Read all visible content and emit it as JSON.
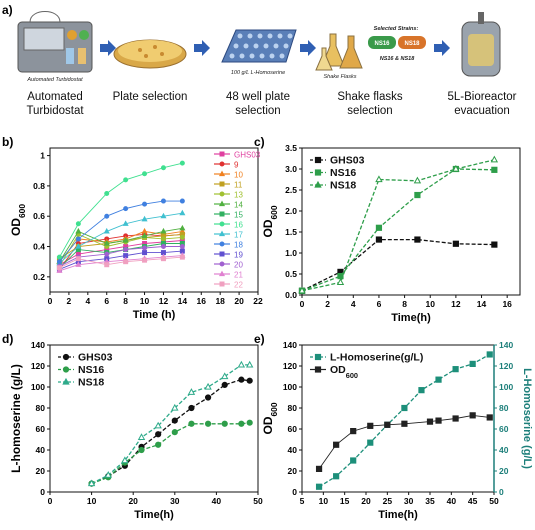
{
  "workflow": {
    "panel": "a)",
    "steps": [
      {
        "caption": [
          "Automated",
          "Turbidostat"
        ],
        "sublabel": "Automated Turbidostat"
      },
      {
        "caption": [
          "Plate selection"
        ]
      },
      {
        "caption": [
          "48 well plate",
          "selection"
        ],
        "sublabel": "100 g/L L-Homoserine"
      },
      {
        "caption": [
          "Shake flasks",
          "selection"
        ],
        "sublabel": "Shake Flasks",
        "selected": "Selected Strains:",
        "chips": [
          "NS16",
          "NS18"
        ],
        "chip_caption": "NS16 & NS18"
      },
      {
        "caption": [
          "5L-Bioreactor",
          "evacuation"
        ]
      }
    ]
  },
  "chart_data": [
    {
      "type": "line",
      "panel": "b)",
      "xlabel": "Time (h)",
      "ylabel": {
        "text": "OD",
        "sub": "600"
      },
      "x": [
        1,
        3,
        6,
        8,
        10,
        12,
        14
      ],
      "xlim": [
        0,
        22
      ],
      "xticks": [
        0,
        2,
        4,
        6,
        8,
        10,
        12,
        14,
        16,
        18,
        20,
        22
      ],
      "ylim": [
        0.1,
        1.05
      ],
      "yticks": [
        0.2,
        0.4,
        0.6,
        0.8,
        1.0
      ],
      "legend": "right",
      "line_style": "solid",
      "series": [
        {
          "name": "GHS03",
          "color": "#e040a0",
          "marker": "square",
          "values": [
            0.28,
            0.35,
            0.38,
            0.4,
            0.42,
            0.43,
            0.44
          ]
        },
        {
          "name": "9",
          "color": "#e03030",
          "marker": "circle",
          "values": [
            0.25,
            0.42,
            0.45,
            0.47,
            0.48,
            0.47,
            0.48
          ]
        },
        {
          "name": "10",
          "color": "#f08020",
          "marker": "triangle",
          "values": [
            0.3,
            0.45,
            0.43,
            0.45,
            0.5,
            0.48,
            0.5
          ]
        },
        {
          "name": "11",
          "color": "#c0a020",
          "marker": "square",
          "values": [
            0.32,
            0.4,
            0.42,
            0.44,
            0.46,
            0.47,
            0.48
          ]
        },
        {
          "name": "13",
          "color": "#a0c030",
          "marker": "circle",
          "values": [
            0.27,
            0.48,
            0.4,
            0.43,
            0.46,
            0.45,
            0.46
          ]
        },
        {
          "name": "14",
          "color": "#50b040",
          "marker": "triangle",
          "values": [
            0.3,
            0.5,
            0.42,
            0.44,
            0.47,
            0.5,
            0.52
          ]
        },
        {
          "name": "15",
          "color": "#30b060",
          "marker": "square",
          "values": [
            0.26,
            0.38,
            0.36,
            0.38,
            0.4,
            0.42,
            0.42
          ]
        },
        {
          "name": "16",
          "color": "#40e090",
          "marker": "circle",
          "values": [
            0.33,
            0.55,
            0.75,
            0.84,
            0.88,
            0.92,
            0.95
          ]
        },
        {
          "name": "17",
          "color": "#40c0d0",
          "marker": "triangle",
          "values": [
            0.29,
            0.4,
            0.5,
            0.55,
            0.58,
            0.6,
            0.62
          ]
        },
        {
          "name": "18",
          "color": "#4080e0",
          "marker": "circle",
          "values": [
            0.3,
            0.45,
            0.6,
            0.65,
            0.68,
            0.7,
            0.7
          ]
        },
        {
          "name": "19",
          "color": "#6050d0",
          "marker": "square",
          "values": [
            0.25,
            0.3,
            0.32,
            0.34,
            0.36,
            0.36,
            0.37
          ]
        },
        {
          "name": "20",
          "color": "#a060d0",
          "marker": "circle",
          "values": [
            0.27,
            0.33,
            0.35,
            0.38,
            0.39,
            0.4,
            0.4
          ]
        },
        {
          "name": "21",
          "color": "#e080d0",
          "marker": "triangle",
          "values": [
            0.24,
            0.28,
            0.3,
            0.31,
            0.32,
            0.33,
            0.34
          ]
        },
        {
          "name": "22",
          "color": "#f0a0c0",
          "marker": "square",
          "values": [
            0.26,
            0.32,
            0.28,
            0.3,
            0.31,
            0.32,
            0.33
          ]
        }
      ]
    },
    {
      "type": "line",
      "panel": "c)",
      "xlabel": "Time(h)",
      "ylabel": {
        "text": "OD",
        "sub": "600"
      },
      "x": [
        0,
        3,
        6,
        9,
        12,
        15
      ],
      "xlim": [
        0,
        17
      ],
      "xticks": [
        0,
        2,
        4,
        6,
        8,
        10,
        12,
        14,
        16
      ],
      "ylim": [
        0,
        3.5
      ],
      "yticks": [
        {
          "value": 0,
          "label": "0.0"
        },
        0.5,
        {
          "value": 1,
          "label": "1.0"
        },
        1.5,
        {
          "value": 2,
          "label": "2.0"
        },
        2.5,
        {
          "value": 3,
          "label": "3.0"
        },
        3.5
      ],
      "legend": "upper left",
      "line_style": "dashed",
      "series": [
        {
          "name": "GHS03",
          "color": "#111111",
          "marker": "square",
          "values": [
            0.1,
            0.55,
            1.32,
            1.32,
            1.22,
            1.2
          ]
        },
        {
          "name": "NS16",
          "color": "#2e9e4a",
          "marker": "square",
          "values": [
            0.1,
            0.45,
            1.6,
            2.38,
            3.0,
            2.98
          ]
        },
        {
          "name": "NS18",
          "color": "#2e9e4a",
          "marker": "triangle",
          "values": [
            0.1,
            0.3,
            2.75,
            2.72,
            3.0,
            3.22
          ]
        }
      ]
    },
    {
      "type": "line",
      "panel": "d)",
      "xlabel": "Time(h)",
      "ylabel": "L-homoserine (g/L)",
      "x": [
        10,
        14,
        18,
        22,
        26,
        30,
        34,
        38,
        42,
        46,
        48
      ],
      "xlim": [
        0,
        50
      ],
      "xticks": [
        0,
        10,
        20,
        30,
        40,
        50
      ],
      "ylim": [
        0,
        140
      ],
      "yticks": [
        0,
        20,
        40,
        60,
        80,
        100,
        120,
        140
      ],
      "legend": "upper left",
      "line_style": "dashed",
      "series": [
        {
          "name": "GHS03",
          "color": "#111111",
          "marker": "circle",
          "values": [
            8,
            15,
            25,
            43,
            55,
            68,
            80,
            90,
            102,
            107,
            106
          ]
        },
        {
          "name": "NS16",
          "color": "#2e9e4a",
          "marker": "circle",
          "values": [
            8,
            14,
            28,
            40,
            45,
            57,
            65,
            65,
            65,
            65,
            66
          ]
        },
        {
          "name": "NS18",
          "color": "#2eaa8a",
          "marker": "triangle",
          "values": [
            8,
            16,
            30,
            52,
            63,
            80,
            95,
            100,
            110,
            121,
            121
          ]
        }
      ]
    },
    {
      "type": "line",
      "panel": "e)",
      "xlabel": "Time(h)",
      "ylabel": {
        "text": "OD",
        "sub": "600"
      },
      "y2label": "L-Homoserine (g/L)",
      "y2color": "#1d7f7a",
      "xlim": [
        5,
        50
      ],
      "xticks": [
        5,
        10,
        15,
        20,
        25,
        30,
        35,
        40,
        45,
        50
      ],
      "ylim": [
        0,
        140
      ],
      "yticks": [
        0,
        20,
        40,
        60,
        80,
        100,
        120,
        140
      ],
      "y2lim": [
        0,
        140
      ],
      "y2ticks": [
        0,
        20,
        40,
        60,
        80,
        100,
        120,
        140
      ],
      "legend": "upper left",
      "series": [
        {
          "name": "L-Homoserine(g/L)",
          "color": "#1d8f7a",
          "marker": "square",
          "style": "dashed",
          "axis": "y2",
          "x": [
            9,
            13,
            17,
            21,
            25,
            29,
            33,
            37,
            41,
            45,
            49
          ],
          "values": [
            5,
            15,
            30,
            47,
            64,
            80,
            97,
            107,
            117,
            122,
            131
          ]
        },
        {
          "name": {
            "text": "OD",
            "sub": "600"
          },
          "color": "#222222",
          "marker": "square",
          "style": "solid",
          "x": [
            9,
            13,
            17,
            21,
            25,
            29,
            35,
            37,
            41,
            45,
            49
          ],
          "values": [
            22,
            45,
            58,
            63,
            64,
            65,
            67,
            68,
            70,
            73,
            71
          ]
        }
      ]
    }
  ]
}
